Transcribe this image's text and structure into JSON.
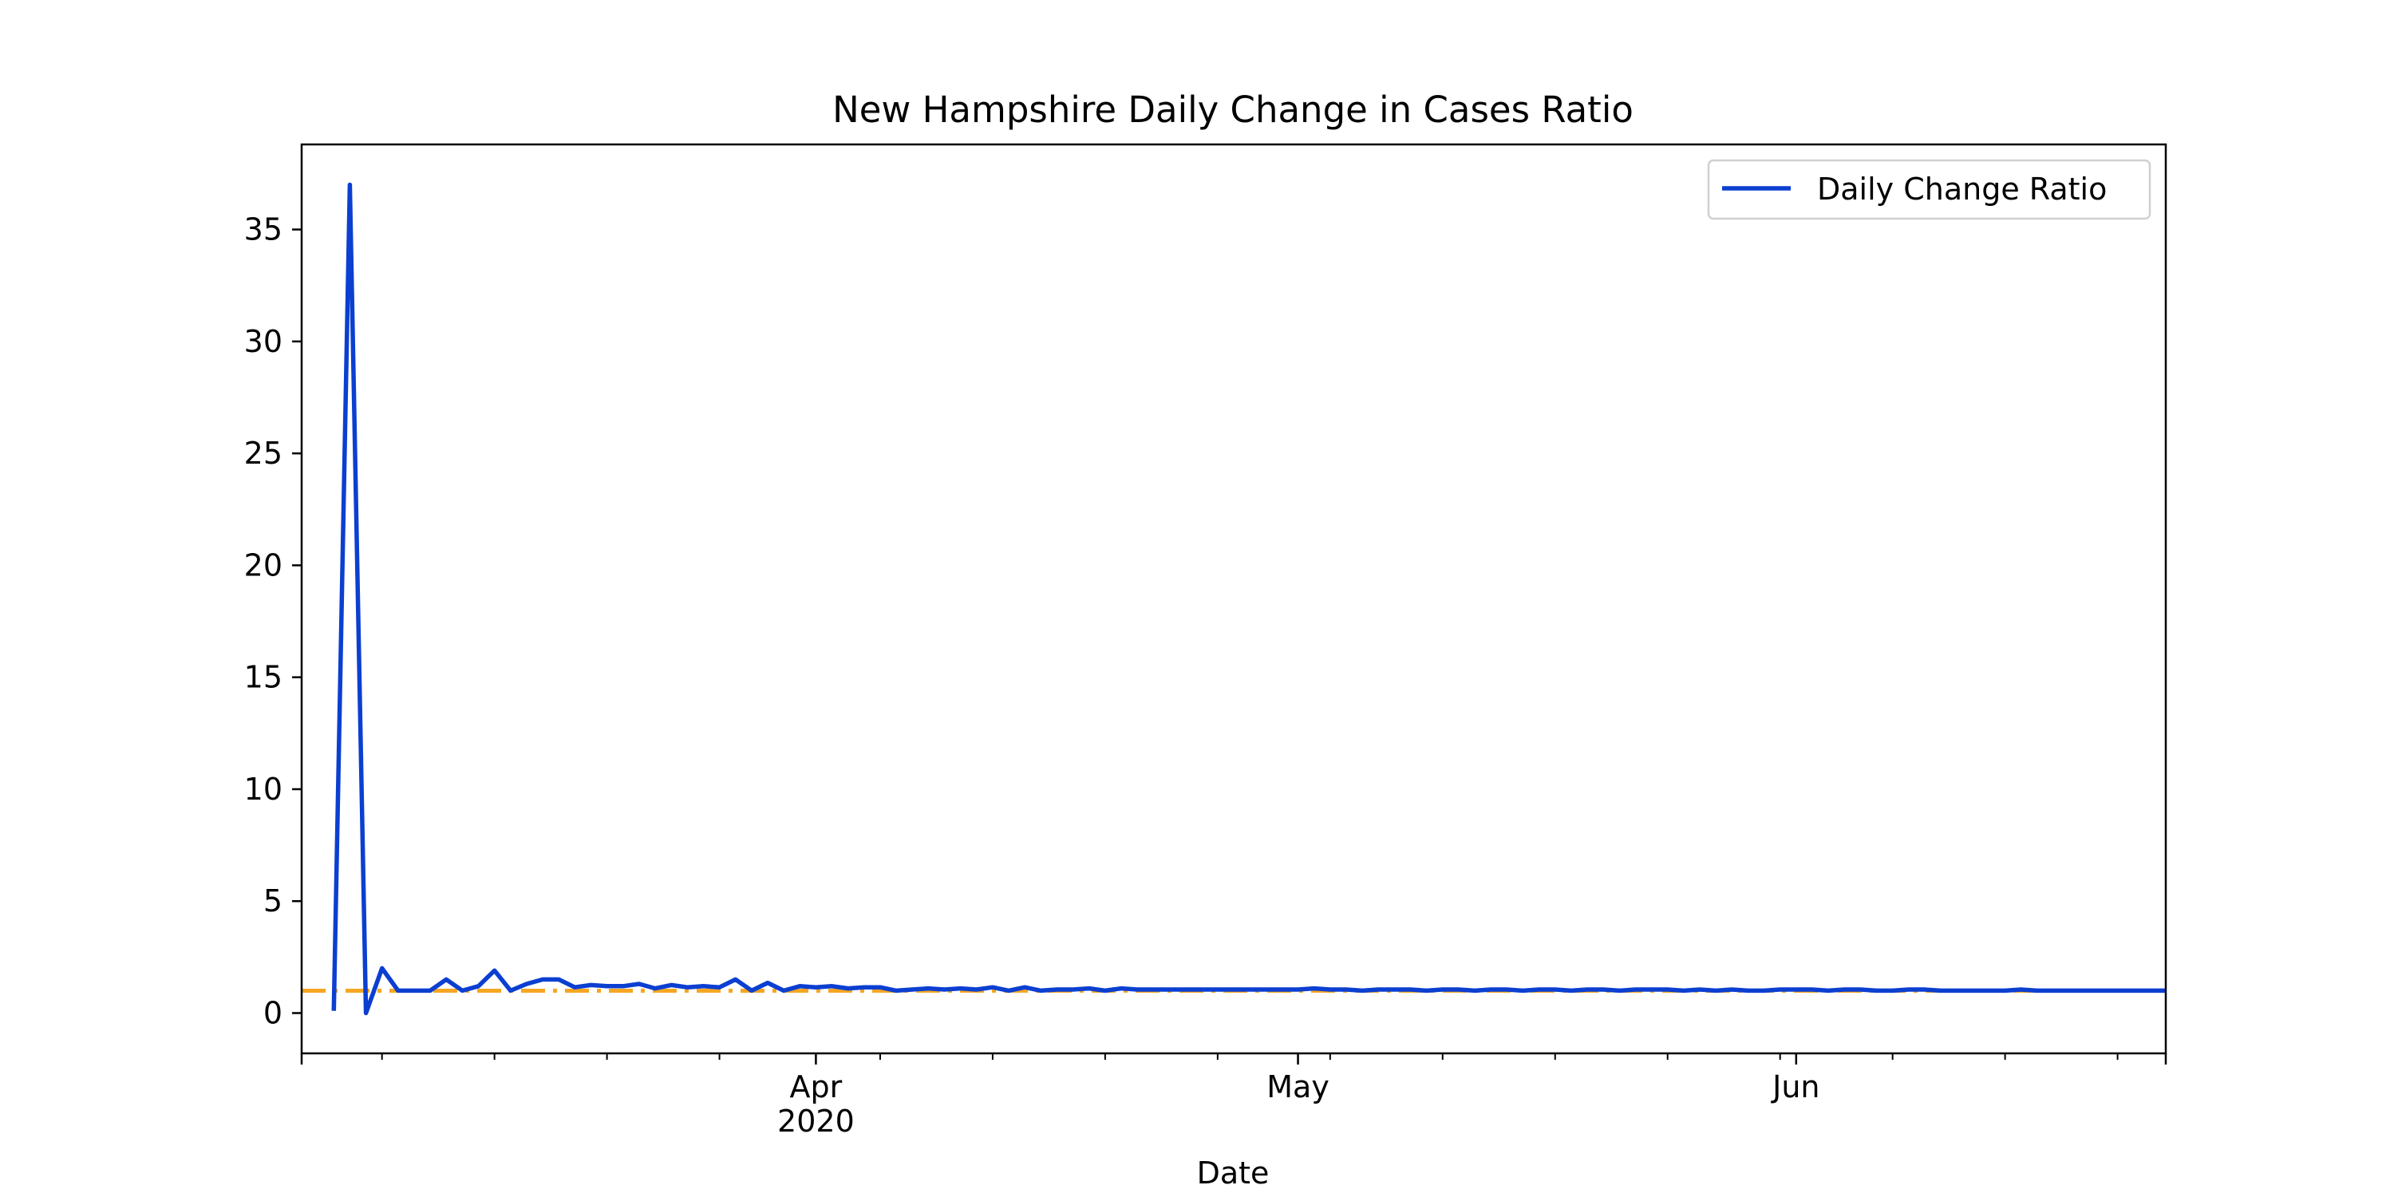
{
  "chart_data": {
    "type": "line",
    "title": "New Hampshire Daily Change in Cases Ratio",
    "xlabel": "Date",
    "ylabel": "",
    "x_start": "2020-03-02",
    "x_end": "2020-06-24",
    "xlim": [
      "2020-02-29",
      "2020-06-24"
    ],
    "ylim": [
      -1.8,
      38.8
    ],
    "yticks": [
      0,
      5,
      10,
      15,
      20,
      25,
      30,
      35
    ],
    "xticks": [
      {
        "date": "2020-04-01",
        "label": "Apr",
        "sublabel": "2020"
      },
      {
        "date": "2020-05-01",
        "label": "May",
        "sublabel": ""
      },
      {
        "date": "2020-06-01",
        "label": "Jun",
        "sublabel": ""
      }
    ],
    "x_minor_ticks": [
      "2020-03-05",
      "2020-03-12",
      "2020-03-19",
      "2020-03-26",
      "2020-04-05",
      "2020-04-12",
      "2020-04-19",
      "2020-04-26",
      "2020-05-03",
      "2020-05-10",
      "2020-05-17",
      "2020-05-24",
      "2020-05-31",
      "2020-06-07",
      "2020-06-14",
      "2020-06-21"
    ],
    "grid": false,
    "legend_position": "top-right",
    "series": [
      {
        "name": "Daily Change Ratio",
        "color": "#0b3fd1",
        "values": [
          0.1,
          37.0,
          0.0,
          2.0,
          1.0,
          1.0,
          1.0,
          1.5,
          1.0,
          1.2,
          1.9,
          1.0,
          1.3,
          1.5,
          1.5,
          1.15,
          1.25,
          1.2,
          1.2,
          1.3,
          1.1,
          1.25,
          1.15,
          1.2,
          1.15,
          1.5,
          1.0,
          1.35,
          1.0,
          1.2,
          1.15,
          1.2,
          1.1,
          1.15,
          1.15,
          1.0,
          1.05,
          1.1,
          1.05,
          1.1,
          1.05,
          1.15,
          1.0,
          1.15,
          1.0,
          1.05,
          1.05,
          1.1,
          1.0,
          1.1,
          1.05,
          1.05,
          1.05,
          1.05,
          1.05,
          1.05,
          1.05,
          1.05,
          1.05,
          1.05,
          1.05,
          1.1,
          1.05,
          1.05,
          1.0,
          1.05,
          1.05,
          1.05,
          1.0,
          1.05,
          1.05,
          1.0,
          1.05,
          1.05,
          1.0,
          1.05,
          1.05,
          1.0,
          1.05,
          1.05,
          1.0,
          1.05,
          1.05,
          1.05,
          1.0,
          1.05,
          1.0,
          1.05,
          1.0,
          1.0,
          1.05,
          1.05,
          1.05,
          1.0,
          1.05,
          1.05,
          1.0,
          1.0,
          1.05,
          1.05,
          1.0,
          1.0,
          1.0,
          1.0,
          1.0,
          1.05,
          1.0,
          1.0,
          1.0,
          1.0,
          1.0,
          1.0,
          1.0,
          1.0,
          1.0
        ]
      }
    ],
    "reference_line": {
      "y": 1.0,
      "color": "#f5a623",
      "style": "dash-dot"
    }
  }
}
